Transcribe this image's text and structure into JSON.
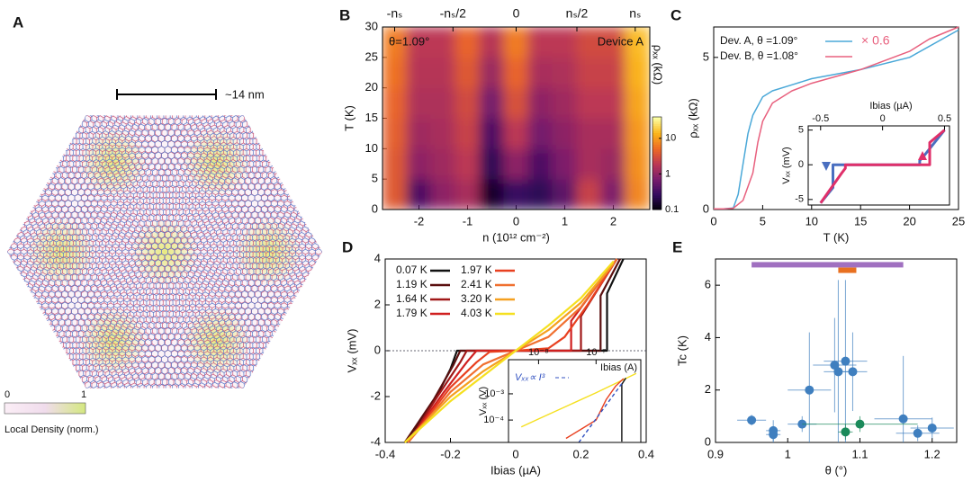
{
  "panel_a": {
    "label": "A",
    "scale_bar": "~14 nm",
    "colorbar_ticks": [
      "0",
      "1"
    ],
    "colorbar_label": "Local Density (norm.)"
  },
  "chart_data": [
    {
      "type": "heatmap",
      "label": "B",
      "log": true,
      "x": [
        -2.5,
        -2,
        -1.5,
        -1,
        -0.5,
        0,
        0.5,
        1,
        1.5,
        2,
        2.5
      ],
      "y": [
        2.5,
        7.5,
        12.5,
        17.5,
        22.5,
        27.5
      ],
      "z": [
        [
          4,
          0.4,
          1.0,
          1.5,
          0.15,
          0.3,
          0.25,
          0.5,
          2.5,
          0.8,
          8
        ],
        [
          4,
          1.0,
          1.3,
          2.0,
          0.25,
          1.0,
          0.4,
          0.8,
          1.5,
          1.2,
          9
        ],
        [
          4.5,
          1.3,
          1.5,
          2.5,
          0.4,
          2.0,
          0.7,
          1.0,
          1.5,
          1.5,
          10
        ],
        [
          5,
          1.6,
          1.6,
          3,
          0.7,
          3.5,
          1.0,
          1.3,
          2,
          2,
          12
        ],
        [
          6,
          1.8,
          1.8,
          4,
          1.2,
          5,
          1.5,
          1.6,
          2.5,
          2.5,
          14
        ],
        [
          7,
          2,
          2,
          5,
          1.8,
          7,
          2,
          2,
          3,
          3,
          16
        ]
      ],
      "xlim": [
        -2.75,
        2.75
      ],
      "ylim": [
        0,
        30
      ],
      "xticks": [
        -2,
        -1,
        0,
        1,
        2
      ],
      "yticks": [
        0,
        5,
        10,
        15,
        20,
        25,
        30
      ],
      "x2ticks": [
        {
          "value": -2.5,
          "label": "-nₛ"
        },
        {
          "value": -1.3,
          "label": "-nₛ/2"
        },
        {
          "value": 0,
          "label": "0"
        },
        {
          "value": 1.25,
          "label": "nₛ/2"
        },
        {
          "value": 2.45,
          "label": "nₛ"
        }
      ],
      "xlabel": "n (10¹² cm⁻²)",
      "ylabel": "T (K)",
      "colormap": [
        "#000004",
        "#320a5e",
        "#781c6d",
        "#bc3754",
        "#ed6925",
        "#fbb61a",
        "#fcffa4"
      ],
      "colorbar": {
        "label": "ρₓₓ (kΩ)",
        "lim": [
          0.1,
          40
        ],
        "ticks": [
          10,
          1,
          0.1
        ]
      },
      "annotations": [
        "θ=1.09°",
        "Device A"
      ]
    },
    {
      "type": "line",
      "label": "C",
      "xlim": [
        0,
        25
      ],
      "ylim": [
        0,
        6
      ],
      "xticks": [
        0,
        5,
        10,
        15,
        20,
        25
      ],
      "yticks": [
        0,
        5
      ],
      "xlabel": "T (K)",
      "ylabel": "ρₓₓ (kΩ)",
      "legend": "upper left",
      "annotation": "× 0.6",
      "series": [
        {
          "name": "Dev. A, θ =1.09°",
          "color": "#4aa8d8",
          "x": [
            0,
            1,
            2,
            2.5,
            3,
            3.5,
            4,
            5,
            6,
            8,
            10,
            15,
            20,
            25
          ],
          "values": [
            0.02,
            0.02,
            0.05,
            0.5,
            1.5,
            2.5,
            3.1,
            3.7,
            3.9,
            4.1,
            4.3,
            4.6,
            5.0,
            5.9
          ]
        },
        {
          "name": "Dev. B, θ =1.08°",
          "color": "#e8607e",
          "x": [
            0,
            1,
            2,
            3,
            4,
            4.5,
            5,
            6,
            8,
            10,
            15,
            20,
            22,
            25
          ],
          "values": [
            0.02,
            0.02,
            0.04,
            0.3,
            1.2,
            2.2,
            2.9,
            3.5,
            3.9,
            4.15,
            4.6,
            5.2,
            5.6,
            6.0
          ]
        }
      ]
    },
    {
      "type": "line",
      "xaxis": "top",
      "xlim": [
        -0.6,
        0.54
      ],
      "ylim": [
        -5.8,
        5.6
      ],
      "xticks": [
        -0.5,
        0,
        0.5
      ],
      "yticks": [
        -5,
        0,
        5
      ],
      "xlabel": "Ibias (µA)",
      "ylabel": "Vₓₓ (mV)",
      "series": [
        {
          "color": "#4a6fc0",
          "x": [
            0.5,
            0.33,
            0.3,
            0.3,
            -0.4,
            -0.4,
            -0.5
          ],
          "values": [
            5,
            1.2,
            0.6,
            0,
            0,
            -3.3,
            -5.5
          ]
        },
        {
          "color": "#e0306a",
          "x": [
            -0.5,
            -0.33,
            -0.3,
            -0.3,
            0.38,
            0.38,
            0.5
          ],
          "values": [
            -5.5,
            -1.2,
            -0.5,
            0,
            0,
            3.2,
            5
          ]
        }
      ]
    },
    {
      "type": "line",
      "label": "D",
      "xlim": [
        -0.4,
        0.4
      ],
      "ylim": [
        -4,
        4
      ],
      "xticks": [
        -0.4,
        -0.2,
        0,
        0.2,
        0.4
      ],
      "yticks": [
        -4,
        -2,
        0,
        2,
        4
      ],
      "xlabel": "Ibias (µA)",
      "ylabel": "Vₓₓ (mV)",
      "legend": "upper left",
      "series": [
        {
          "name": "0.07 K",
          "color": "#111111",
          "x": [
            -0.34,
            -0.25,
            -0.2,
            -0.18,
            0.28,
            0.28,
            0.33
          ],
          "values": [
            -4,
            -2.2,
            -0.8,
            0,
            0,
            2.5,
            4
          ]
        },
        {
          "name": "1.19 K",
          "color": "#5a0f0f",
          "x": [
            -0.34,
            -0.25,
            -0.19,
            -0.17,
            0.26,
            0.26,
            0.32
          ],
          "values": [
            -4,
            -2.1,
            -0.6,
            0,
            0,
            2.4,
            4
          ]
        },
        {
          "name": "1.64 K",
          "color": "#a01818",
          "x": [
            -0.33,
            -0.24,
            -0.17,
            -0.15,
            0.2,
            0.2,
            0.31
          ],
          "values": [
            -4,
            -2,
            -0.5,
            0,
            0,
            1.5,
            4
          ]
        },
        {
          "name": "1.79 K",
          "color": "#d02020",
          "x": [
            -0.33,
            -0.22,
            -0.15,
            -0.12,
            0.17,
            0.17,
            0.31
          ],
          "values": [
            -4,
            -1.8,
            -0.5,
            0,
            0,
            1.3,
            4
          ]
        },
        {
          "name": "1.97 K",
          "color": "#e84020",
          "x": [
            -0.33,
            -0.2,
            -0.12,
            -0.08,
            0,
            0.1,
            0.15,
            0.22,
            0.31
          ],
          "values": [
            -4,
            -1.6,
            -0.5,
            -0.05,
            0,
            0.1,
            0.6,
            2,
            4
          ]
        },
        {
          "name": "2.41 K",
          "color": "#f07030",
          "x": [
            -0.33,
            -0.2,
            -0.1,
            0,
            0.1,
            0.2,
            0.31
          ],
          "values": [
            -4,
            -1.8,
            -0.6,
            0,
            0.6,
            1.9,
            4
          ]
        },
        {
          "name": "3.20 K",
          "color": "#f5a020",
          "x": [
            -0.34,
            -0.2,
            -0.1,
            0,
            0.1,
            0.2,
            0.3
          ],
          "values": [
            -4,
            -2,
            -0.9,
            0,
            0.9,
            2.1,
            3.8
          ]
        },
        {
          "name": "4.03 K",
          "color": "#f5e020",
          "x": [
            -0.34,
            -0.2,
            -0.1,
            0,
            0.1,
            0.2,
            0.3
          ],
          "values": [
            -4,
            -2.2,
            -1.1,
            0,
            1.1,
            2.3,
            3.9
          ]
        }
      ]
    },
    {
      "type": "line",
      "xaxis": "top",
      "xlog": true,
      "ylog": true,
      "xlim": [
        3e-09,
        6e-07
      ],
      "ylim": [
        1.4e-05,
        0.02
      ],
      "xticks": [
        {
          "value": 1e-08,
          "label": "10⁻⁸"
        },
        {
          "value": 1e-07,
          "label": "10⁻⁷"
        }
      ],
      "yticks": [
        {
          "value": 0.001,
          "label": "10⁻³"
        },
        {
          "value": 0.0001,
          "label": "10⁻⁴"
        }
      ],
      "xlabel": "Ibias (A)",
      "ylabel": "Vₓₓ (V)",
      "series": [
        {
          "name": "4.03 K",
          "color": "#f5e020",
          "x": [
            5e-09,
            1e-08,
            1e-07,
            3e-07,
            5e-07
          ],
          "values": [
            5.5e-05,
            0.00011,
            0.0011,
            0.0035,
            0.006
          ]
        },
        {
          "name": "1.97 K",
          "color": "#e84020",
          "x": [
            3e-08,
            1e-07,
            1.5e-07,
            2.2e-07,
            3e-07
          ],
          "values": [
            2e-05,
            0.0001,
            0.0006,
            0.002,
            0.0038
          ]
        },
        {
          "name": "0.07 K",
          "color": "#111111",
          "x": [
            2.8e-07,
            2.8e-07,
            3.3e-07
          ],
          "values": [
            1.5e-05,
            0.0023,
            0.004
          ]
        },
        {
          "name": "Vₓₓ∝ I³",
          "color": "#3050c0",
          "dash": true,
          "x": [
            5e-08,
            3e-07
          ],
          "values": [
            1.4e-05,
            0.003
          ]
        }
      ]
    },
    {
      "type": "scatter",
      "label": "E",
      "xlim": [
        0.9,
        1.234
      ],
      "ylim": [
        0,
        7
      ],
      "xticks": [
        0.9,
        1,
        1.1,
        1.2
      ],
      "yticks": [
        0,
        2,
        4,
        6
      ],
      "xlabel": "θ (°)",
      "ylabel": "Tc (K)",
      "series": [
        {
          "color": "#3f7fbf",
          "x": [
            0.95,
            0.98,
            0.98,
            1.02,
            1.03,
            1.065,
            1.07,
            1.08,
            1.09,
            1.16,
            1.18,
            1.2
          ],
          "values": [
            0.85,
            0.45,
            0.3,
            0.7,
            2.0,
            2.95,
            2.7,
            3.1,
            2.7,
            0.9,
            0.35,
            0.55
          ],
          "xerr": [
            0.02,
            0.01,
            0.01,
            0.02,
            0.03,
            0.03,
            0.02,
            0.03,
            0.02,
            0.04,
            0.03,
            0.03
          ],
          "yerr": [
            0.2,
            0.4,
            0.3,
            0.3,
            2.2,
            1.8,
            3.5,
            3.1,
            1.5,
            2.4,
            0.3,
            0.4
          ]
        },
        {
          "color": "#1a8a5a",
          "x": [
            1.08,
            1.1
          ],
          "values": [
            0.4,
            0.7
          ],
          "xerr": [
            0.01,
            0.08
          ],
          "yerr": [
            0.3,
            0.3
          ]
        }
      ],
      "ranges": [
        {
          "color": "#a070c0",
          "xmin": 0.95,
          "xmax": 1.16,
          "y": 6.78
        },
        {
          "color": "#e87020",
          "xmin": 1.07,
          "xmax": 1.095,
          "y": 6.57
        }
      ]
    }
  ]
}
